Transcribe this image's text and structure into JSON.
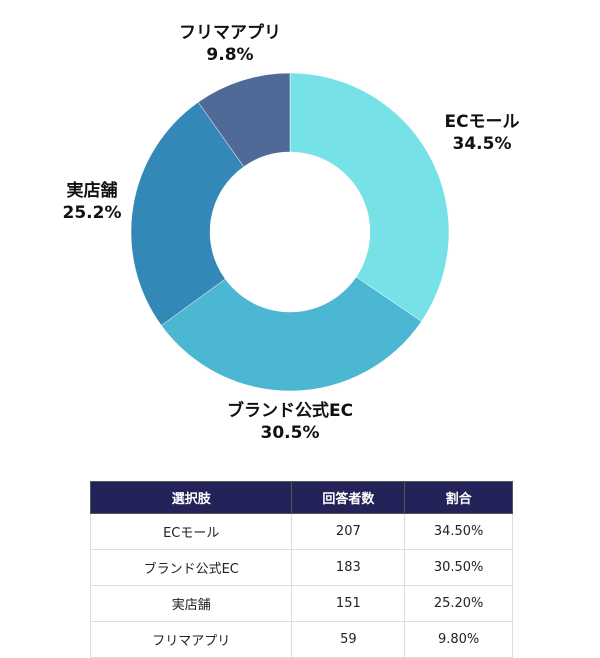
{
  "chart_data": {
    "type": "pie",
    "donut": true,
    "categories": [
      "ECモール",
      "ブランド公式EC",
      "実店舗",
      "フリマアプリ"
    ],
    "values": [
      34.5,
      30.5,
      25.2,
      9.8
    ],
    "labels": [
      "34.5%",
      "30.5%",
      "25.2%",
      "9.8%"
    ],
    "colors": [
      "#76e2e8",
      "#4bb7d3",
      "#3388b8",
      "#4f6a96"
    ]
  },
  "table": {
    "headers": [
      "選択肢",
      "回答者数",
      "割合"
    ],
    "rows": [
      [
        "ECモール",
        "207",
        "34.50%"
      ],
      [
        "ブランド公式EC",
        "183",
        "30.50%"
      ],
      [
        "実店舗",
        "151",
        "25.20%"
      ],
      [
        "フリマアプリ",
        "59",
        "9.80%"
      ]
    ]
  }
}
